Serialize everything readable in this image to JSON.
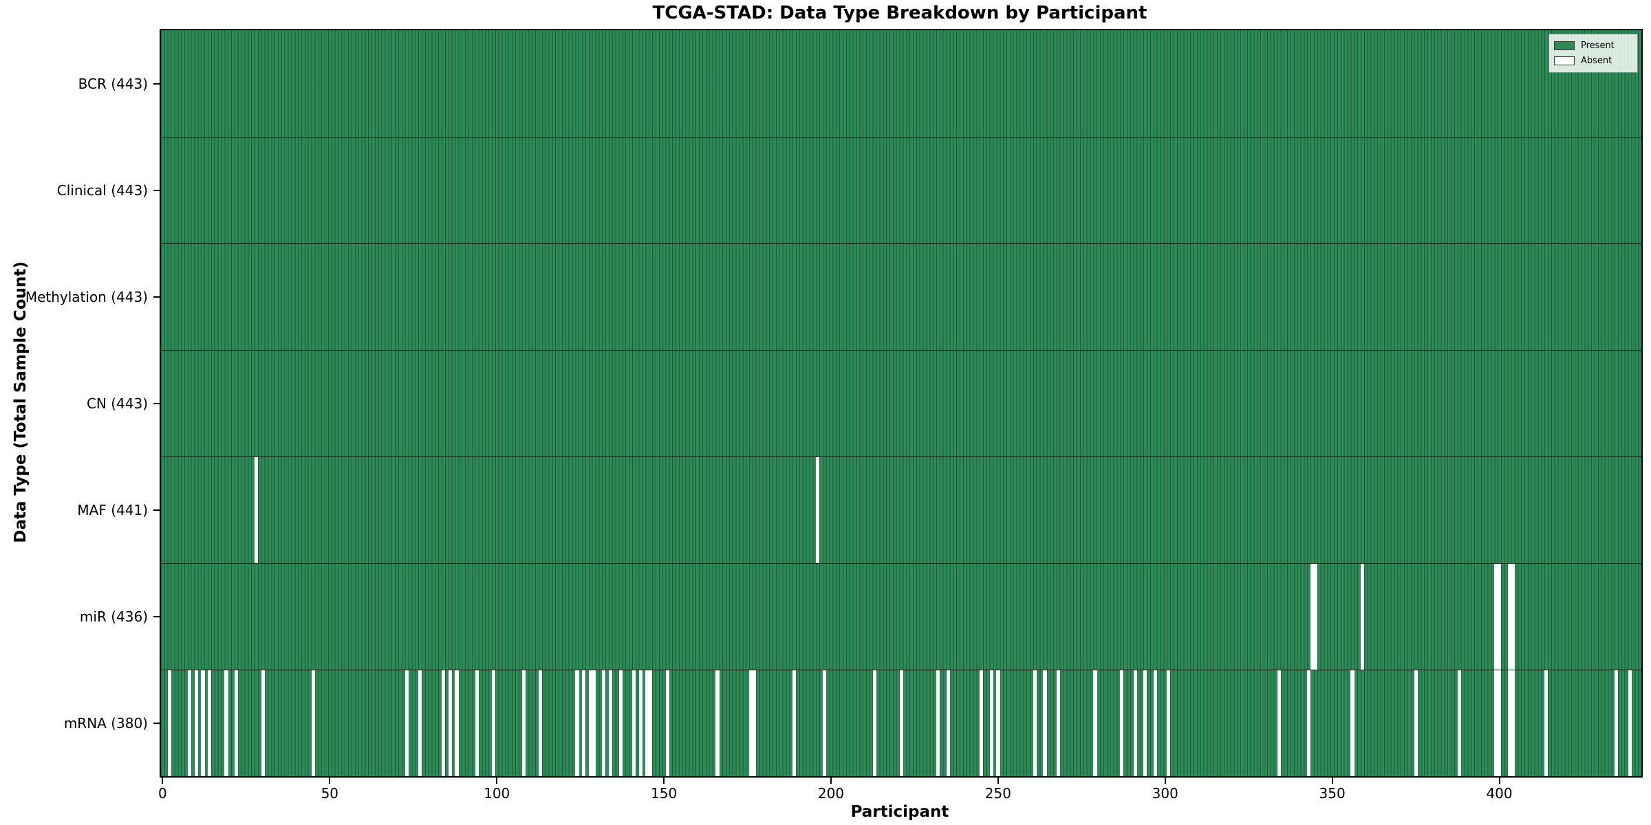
{
  "title": "TCGA-STAD: Data Type Breakdown by Participant",
  "axis": {
    "xlabel": "Participant",
    "ylabel": "Data Type (Total Sample Count)"
  },
  "legend": {
    "present_label": "Present",
    "absent_label": "Absent"
  },
  "colors": {
    "present": "#2e8b57",
    "absent": "#ffffff",
    "bar_edge": "rgba(0,0,0,0.35)",
    "row_separator": "rgba(0,0,0,0.8)",
    "axis_border": "#000000",
    "legend_bg": "rgba(248,251,248,0.85)",
    "legend_border": "#888888"
  },
  "chart_data": {
    "type": "heatmap",
    "title": "TCGA-STAD: Data Type Breakdown by Participant",
    "xlabel": "Participant",
    "ylabel": "Data Type (Total Sample Count)",
    "x_ticks": [
      0,
      50,
      100,
      150,
      200,
      250,
      300,
      350,
      400
    ],
    "x_range": [
      0,
      443
    ],
    "n_participants": 443,
    "grid": false,
    "legend_position": "upper right",
    "legend_entries": [
      {
        "label": "Present",
        "color": "#2e8b57"
      },
      {
        "label": "Absent",
        "color": "#ffffff"
      }
    ],
    "rows": [
      {
        "label": "BCR (443)",
        "data_type": "BCR",
        "present_count": 443,
        "absent_participants": []
      },
      {
        "label": "Clinical (443)",
        "data_type": "Clinical",
        "present_count": 443,
        "absent_participants": []
      },
      {
        "label": "Methylation (443)",
        "data_type": "Methylation",
        "present_count": 443,
        "absent_participants": []
      },
      {
        "label": "CN (443)",
        "data_type": "CN",
        "present_count": 443,
        "absent_participants": []
      },
      {
        "label": "MAF (441)",
        "data_type": "MAF",
        "present_count": 441,
        "absent_participants": [
          28,
          196
        ]
      },
      {
        "label": "miR (436)",
        "data_type": "miR",
        "present_count": 436,
        "absent_participants": [
          344,
          345,
          359,
          399,
          400,
          403,
          404
        ]
      },
      {
        "label": "mRNA (380)",
        "data_type": "mRNA",
        "present_count": 380,
        "absent_participants": [
          2,
          8,
          10,
          12,
          14,
          19,
          22,
          30,
          45,
          73,
          77,
          84,
          86,
          88,
          94,
          99,
          108,
          113,
          124,
          126,
          128,
          129,
          132,
          134,
          137,
          141,
          143,
          145,
          146,
          151,
          166,
          176,
          177,
          189,
          198,
          213,
          221,
          232,
          235,
          245,
          248,
          250,
          261,
          264,
          268,
          279,
          287,
          291,
          294,
          297,
          301,
          334,
          343,
          356,
          375,
          388,
          399,
          400,
          403,
          404,
          414,
          435,
          439
        ]
      }
    ]
  }
}
